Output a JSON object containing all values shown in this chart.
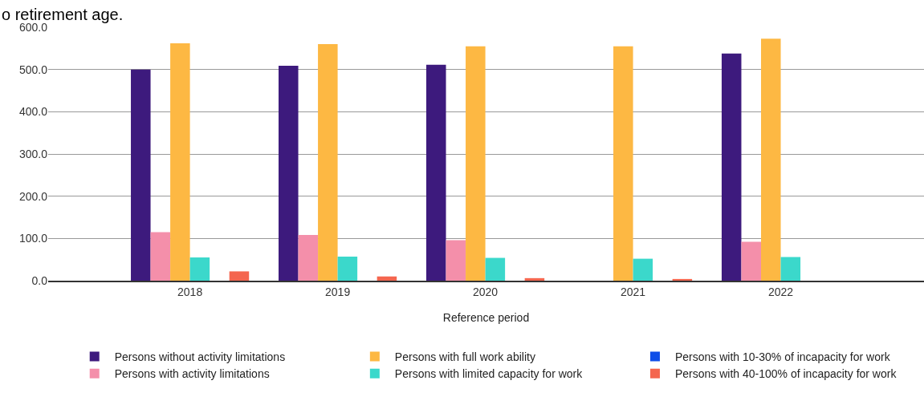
{
  "chart_data": {
    "type": "bar",
    "title": "o retirement age.",
    "xlabel": "Reference period",
    "categories": [
      "2018",
      "2019",
      "2020",
      "2021",
      "2022"
    ],
    "series": [
      {
        "name": "Persons without activity limitations",
        "color": "#3d1a7d",
        "values": [
          500,
          509,
          511,
          null,
          538
        ]
      },
      {
        "name": "Persons with activity limitations",
        "color": "#f48faa",
        "values": [
          115,
          108,
          96,
          null,
          92
        ]
      },
      {
        "name": "Persons with full work ability",
        "color": "#fdb843",
        "values": [
          562,
          560,
          555,
          555,
          573
        ]
      },
      {
        "name": "Persons with limited capacity for work",
        "color": "#3bd8cb",
        "values": [
          55,
          57,
          54,
          52,
          56
        ]
      },
      {
        "name": "Persons with 10-30% of incapacity for work",
        "color": "#0f4ee8",
        "values": [
          null,
          null,
          null,
          null,
          null
        ]
      },
      {
        "name": "Persons with 40-100% of incapacity for work",
        "color": "#f4664f",
        "values": [
          22,
          10,
          6,
          4,
          null
        ]
      }
    ],
    "ylim": [
      0,
      600
    ],
    "yticks": [
      {
        "value": 0,
        "label": "0.0"
      },
      {
        "value": 100,
        "label": "100.0"
      },
      {
        "value": 200,
        "label": "200.0"
      },
      {
        "value": 300,
        "label": "300.0"
      },
      {
        "value": 400,
        "label": "400.0"
      },
      {
        "value": 500,
        "label": "500.0"
      },
      {
        "value": 600,
        "label": "600.0"
      }
    ],
    "grid": "y",
    "legend": "bottom"
  }
}
